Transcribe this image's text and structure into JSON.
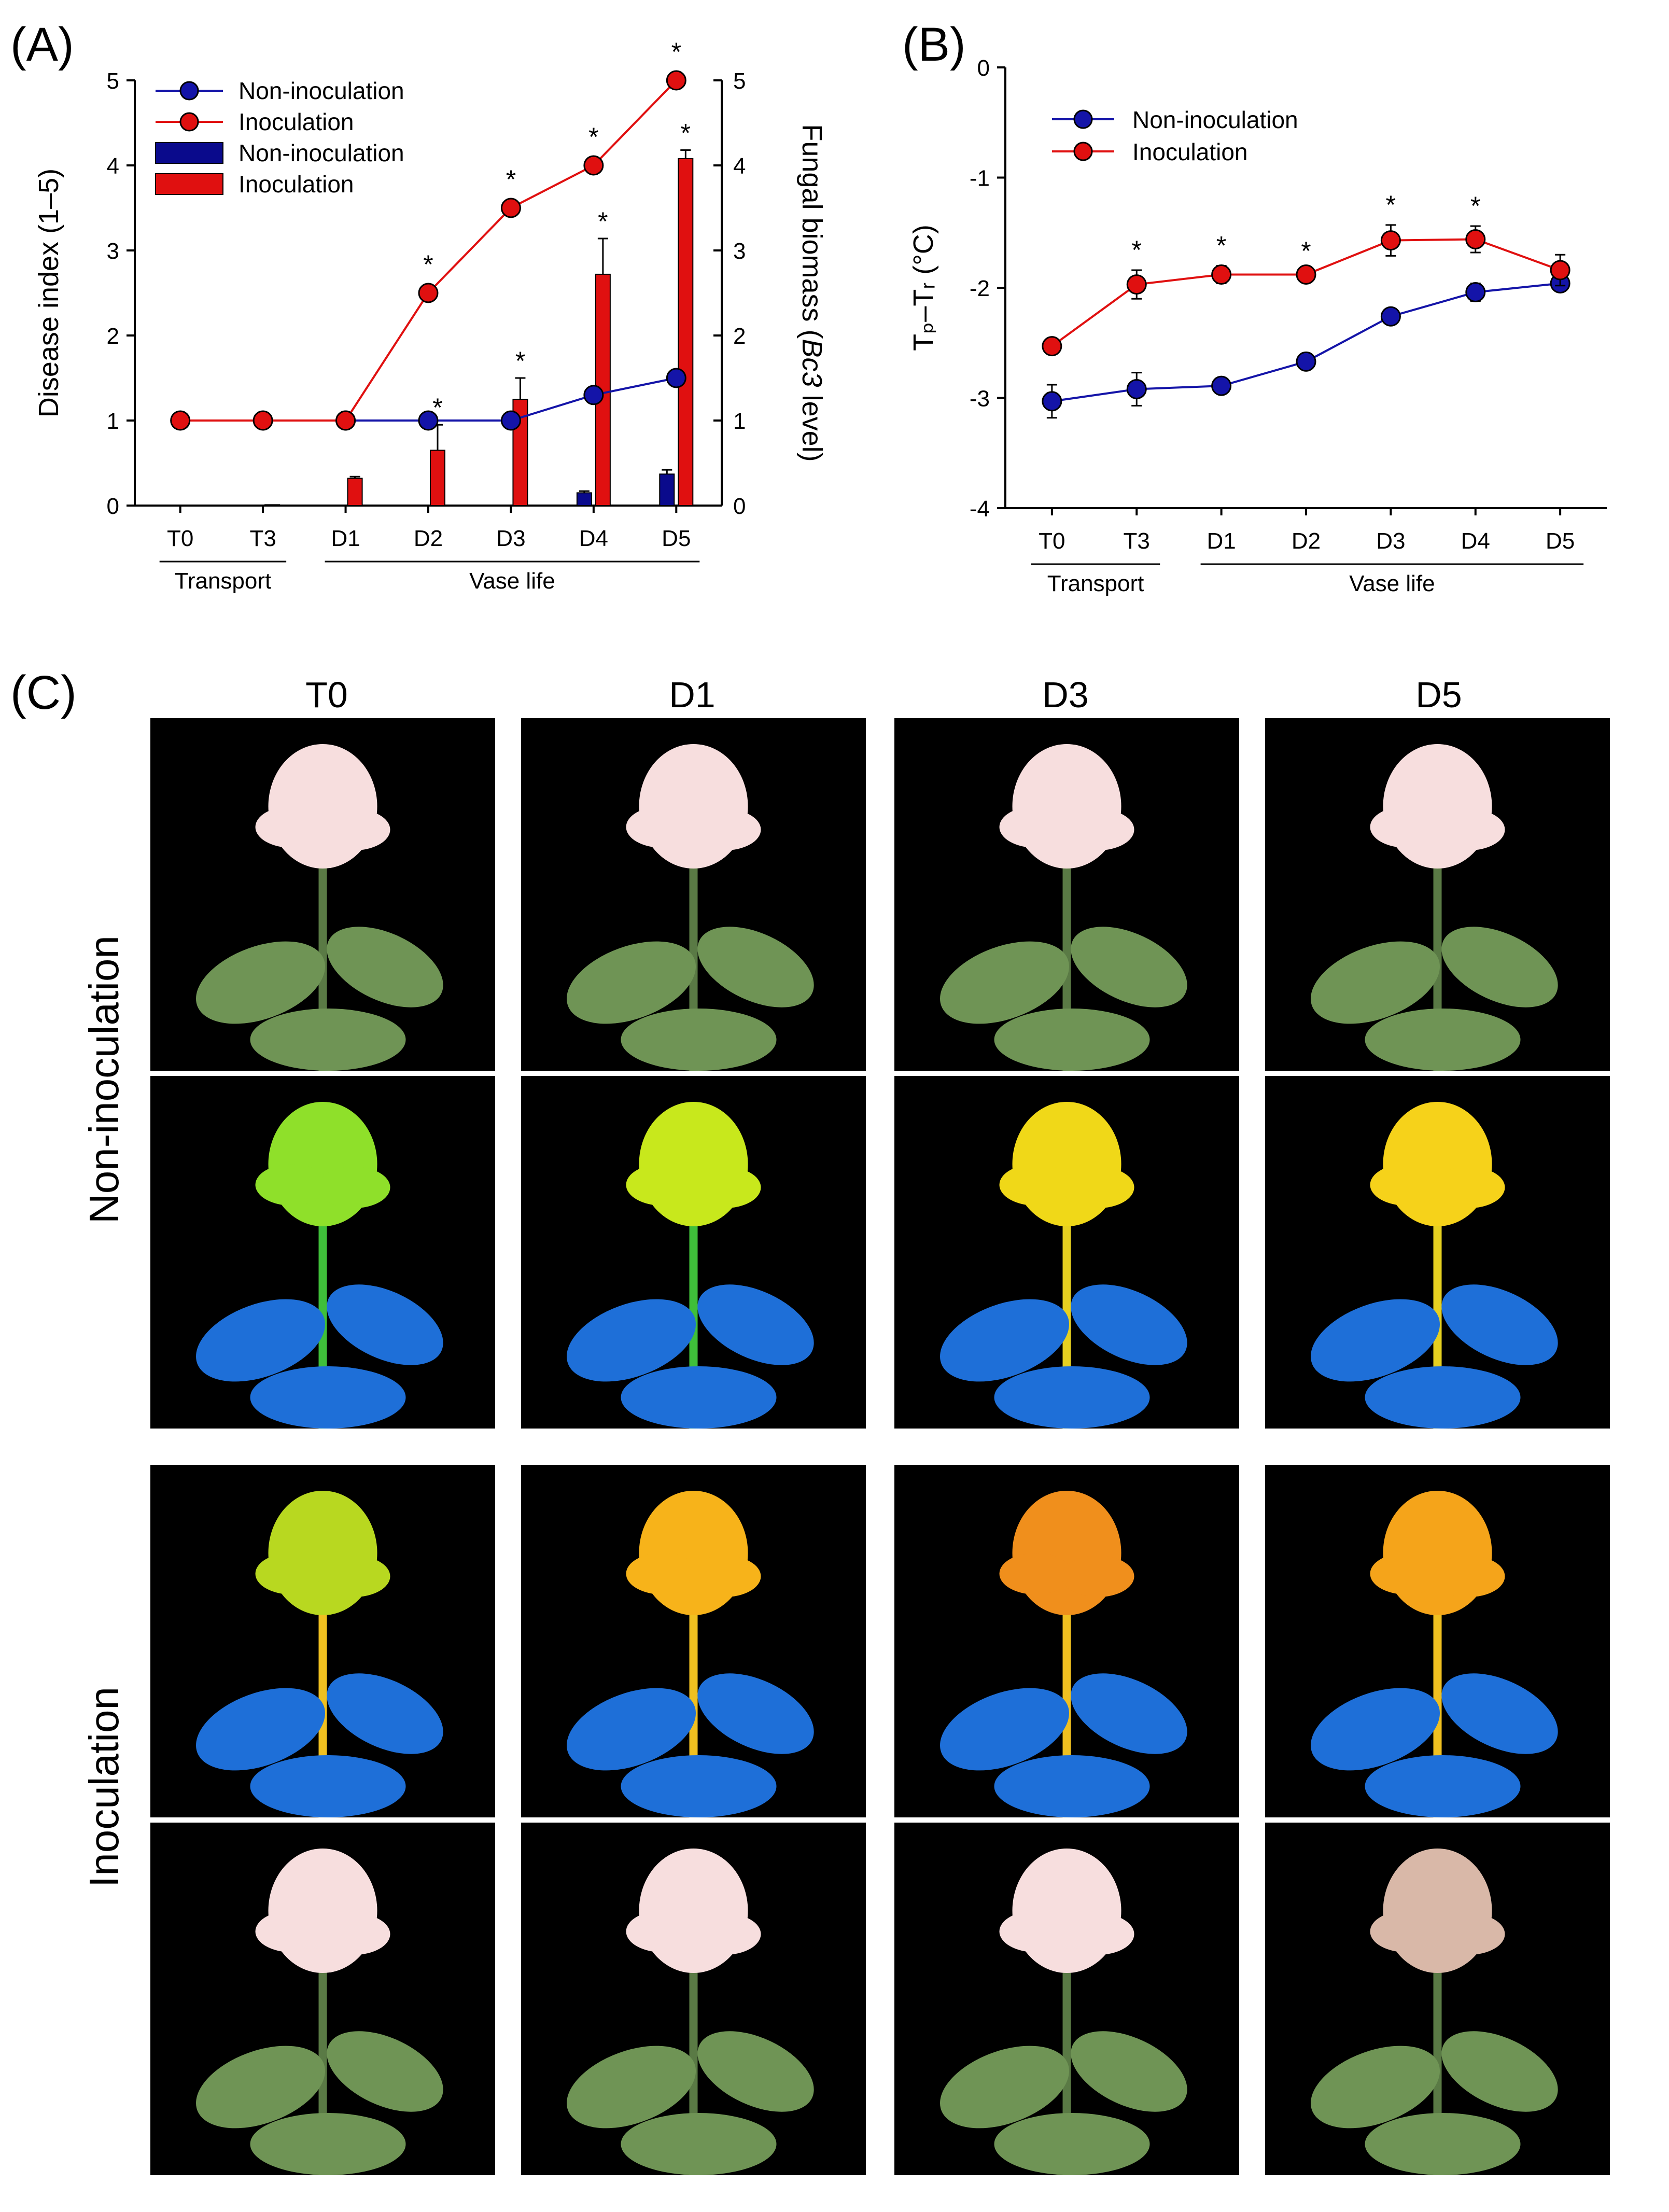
{
  "panel_labels": {
    "A": "(A)",
    "B": "(B)",
    "C": "(C)"
  },
  "chart_data": [
    {
      "id": "A",
      "type": "line+bar",
      "categories": [
        "T0",
        "T3",
        "D1",
        "D2",
        "D3",
        "D4",
        "D5"
      ],
      "ylabel_left": "Disease index (1–5)",
      "ylabel_right_pre": "Fungal biomass (",
      "ylabel_right_italic": "Bc3",
      "ylabel_right_post": " level)",
      "ylim_left": [
        0,
        5
      ],
      "ylim_right": [
        0,
        5
      ],
      "yticks_left": [
        "0",
        "1",
        "2",
        "3",
        "4",
        "5"
      ],
      "yticks_right": [
        "0",
        "1",
        "2",
        "3",
        "4",
        "5"
      ],
      "groups": [
        {
          "label": "Transport",
          "from": "T0",
          "to": "T3"
        },
        {
          "label": "Vase life",
          "from": "D1",
          "to": "D5"
        }
      ],
      "line_series": [
        {
          "name": "Non-inoculation",
          "color": "#1414a8",
          "values": [
            null,
            null,
            1.0,
            1.0,
            1.0,
            1.3,
            1.5
          ]
        },
        {
          "name": "Inoculation",
          "color": "#e01010",
          "values": [
            1.0,
            1.0,
            1.0,
            2.5,
            3.5,
            4.0,
            5.0
          ],
          "errors": [
            0,
            0,
            0,
            0,
            0,
            0.08,
            0
          ]
        }
      ],
      "bar_series": [
        {
          "name": "Non-inoculation",
          "color": "#0a0a8c",
          "values": [
            0,
            0,
            0,
            0,
            0,
            0.15,
            0.37
          ],
          "errors": [
            0,
            0,
            0,
            0,
            0,
            0.02,
            0.05
          ]
        },
        {
          "name": "Inoculation",
          "color": "#e01010",
          "values": [
            0,
            0.01,
            0.32,
            0.65,
            1.25,
            2.72,
            4.08
          ],
          "errors": [
            0,
            0,
            0.02,
            0.3,
            0.25,
            0.42,
            0.1
          ]
        }
      ],
      "stars_line": [
        "D2",
        "D3",
        "D4",
        "D5"
      ],
      "stars_bar": [
        "D2",
        "D3",
        "D4",
        "D5"
      ],
      "star": "*"
    },
    {
      "id": "B",
      "type": "line",
      "categories": [
        "T0",
        "T3",
        "D1",
        "D2",
        "D3",
        "D4",
        "D5"
      ],
      "ylabel": "Tₚ–Tᵣ (°C)",
      "ylim": [
        -4,
        0
      ],
      "yticks": [
        "-4",
        "-3",
        "-2",
        "-1",
        "0"
      ],
      "groups": [
        {
          "label": "Transport",
          "from": "T0",
          "to": "T3"
        },
        {
          "label": "Vase life",
          "from": "D1",
          "to": "D5"
        }
      ],
      "series": [
        {
          "name": "Non-inoculation",
          "color": "#1414a8",
          "values": [
            -3.03,
            -2.92,
            -2.89,
            -2.67,
            -2.26,
            -2.04,
            -1.96
          ],
          "errors": [
            0.15,
            0.15,
            0.06,
            0.03,
            0.07,
            0.08,
            0.05
          ]
        },
        {
          "name": "Inoculation",
          "color": "#e01010",
          "values": [
            -2.53,
            -1.97,
            -1.88,
            -1.88,
            -1.57,
            -1.56,
            -1.84
          ],
          "errors": [
            0.07,
            0.13,
            0.08,
            0.03,
            0.14,
            0.12,
            0.14
          ]
        }
      ],
      "stars": [
        "T3",
        "D1",
        "D2",
        "D3",
        "D4"
      ],
      "star": "*"
    }
  ],
  "panel_c": {
    "columns": [
      "T0",
      "D1",
      "D3",
      "D5"
    ],
    "rows": [
      "Non-inoculation",
      "Inoculation"
    ]
  }
}
